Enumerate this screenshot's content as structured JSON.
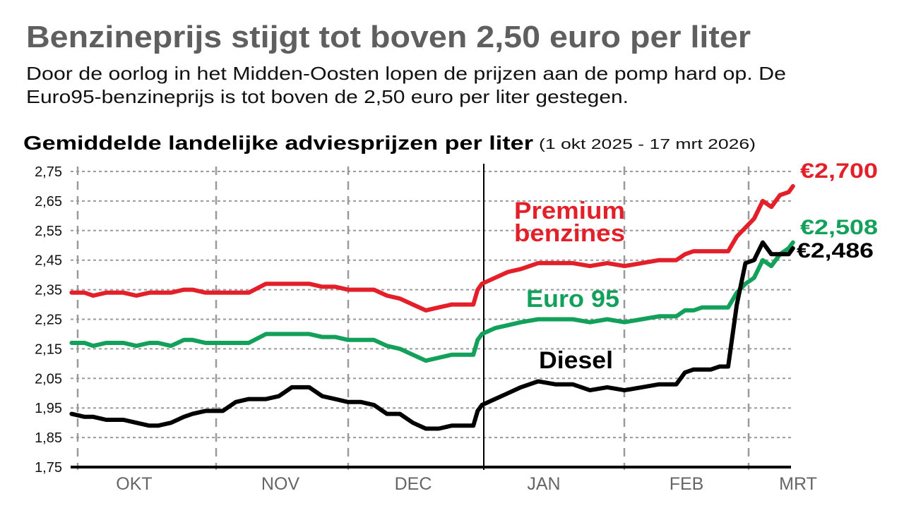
{
  "header": {
    "title": "Benzineprijs stijgt tot boven 2,50 euro per liter",
    "subtitle_line1": "Door de oorlog in het Midden-Oosten lopen de prijzen aan de pomp hard op. De",
    "subtitle_line2": "Euro95-benzineprijs is tot boven de 2,50 euro per liter gestegen."
  },
  "chart_data": {
    "type": "line",
    "title": "Gemiddelde landelijke adviesprijzen per liter",
    "subtitle": "(1 okt 2025 -  17 mrt 2026)",
    "xlabel": "",
    "ylabel": "",
    "ylim": [
      1.75,
      2.75
    ],
    "yticks": [
      "2,75",
      "2,65",
      "2,55",
      "2,45",
      "2,35",
      "2,25",
      "2,15",
      "2,05",
      "1,95",
      "1,85",
      "1,75"
    ],
    "xtick_labels": [
      "OKT",
      "NOV",
      "DEC",
      "JAN",
      "FEB",
      "MRT"
    ],
    "grid": true,
    "legend": "inline labels",
    "x": [
      "2025-10-01",
      "2025-10-04",
      "2025-10-06",
      "2025-10-09",
      "2025-10-13",
      "2025-10-16",
      "2025-10-19",
      "2025-10-21",
      "2025-10-24",
      "2025-10-27",
      "2025-10-29",
      "2025-11-01",
      "2025-11-05",
      "2025-11-08",
      "2025-11-11",
      "2025-11-15",
      "2025-11-18",
      "2025-11-21",
      "2025-11-25",
      "2025-11-28",
      "2025-12-01",
      "2025-12-04",
      "2025-12-07",
      "2025-12-10",
      "2025-12-13",
      "2025-12-16",
      "2025-12-19",
      "2025-12-22",
      "2025-12-25",
      "2025-12-28",
      "2025-12-31",
      "2026-01-02",
      "2026-01-03",
      "2026-01-04",
      "2026-01-07",
      "2026-01-10",
      "2026-01-13",
      "2026-01-17",
      "2026-01-21",
      "2026-01-25",
      "2026-01-29",
      "2026-02-02",
      "2026-02-06",
      "2026-02-10",
      "2026-02-14",
      "2026-02-18",
      "2026-02-20",
      "2026-02-22",
      "2026-02-24",
      "2026-02-26",
      "2026-02-28",
      "2026-03-02",
      "2026-03-04",
      "2026-03-06",
      "2026-03-08",
      "2026-03-10",
      "2026-03-12",
      "2026-03-14",
      "2026-03-16",
      "2026-03-17"
    ],
    "series": [
      {
        "name": "Premium benzines",
        "color": "#e3202a",
        "end_label": "€2,700",
        "values": [
          2.34,
          2.34,
          2.33,
          2.34,
          2.34,
          2.33,
          2.34,
          2.34,
          2.34,
          2.35,
          2.35,
          2.34,
          2.34,
          2.34,
          2.34,
          2.37,
          2.37,
          2.37,
          2.37,
          2.36,
          2.36,
          2.35,
          2.35,
          2.35,
          2.33,
          2.32,
          2.3,
          2.28,
          2.29,
          2.3,
          2.3,
          2.3,
          2.35,
          2.37,
          2.39,
          2.41,
          2.42,
          2.44,
          2.44,
          2.44,
          2.43,
          2.44,
          2.43,
          2.44,
          2.45,
          2.45,
          2.47,
          2.48,
          2.48,
          2.48,
          2.48,
          2.48,
          2.53,
          2.56,
          2.59,
          2.65,
          2.63,
          2.67,
          2.68,
          2.7
        ]
      },
      {
        "name": "Euro 95",
        "color": "#12a05a",
        "end_label": "€2,508",
        "values": [
          2.17,
          2.17,
          2.16,
          2.17,
          2.17,
          2.16,
          2.17,
          2.17,
          2.16,
          2.18,
          2.18,
          2.17,
          2.17,
          2.17,
          2.17,
          2.2,
          2.2,
          2.2,
          2.2,
          2.19,
          2.19,
          2.18,
          2.18,
          2.18,
          2.16,
          2.15,
          2.13,
          2.11,
          2.12,
          2.13,
          2.13,
          2.13,
          2.18,
          2.2,
          2.22,
          2.23,
          2.24,
          2.25,
          2.25,
          2.25,
          2.24,
          2.25,
          2.24,
          2.25,
          2.26,
          2.26,
          2.28,
          2.28,
          2.29,
          2.29,
          2.29,
          2.29,
          2.34,
          2.37,
          2.39,
          2.45,
          2.43,
          2.47,
          2.49,
          2.51
        ]
      },
      {
        "name": "Diesel",
        "color": "#000000",
        "end_label": "€2,486",
        "values": [
          1.93,
          1.92,
          1.92,
          1.91,
          1.91,
          1.9,
          1.89,
          1.89,
          1.9,
          1.92,
          1.93,
          1.94,
          1.94,
          1.97,
          1.98,
          1.98,
          1.99,
          2.02,
          2.02,
          1.99,
          1.98,
          1.97,
          1.97,
          1.96,
          1.93,
          1.93,
          1.9,
          1.88,
          1.88,
          1.89,
          1.89,
          1.89,
          1.94,
          1.96,
          1.98,
          2.0,
          2.02,
          2.04,
          2.03,
          2.03,
          2.01,
          2.02,
          2.01,
          2.02,
          2.03,
          2.03,
          2.07,
          2.08,
          2.08,
          2.08,
          2.09,
          2.09,
          2.3,
          2.44,
          2.45,
          2.51,
          2.47,
          2.47,
          2.47,
          2.49
        ]
      }
    ]
  }
}
